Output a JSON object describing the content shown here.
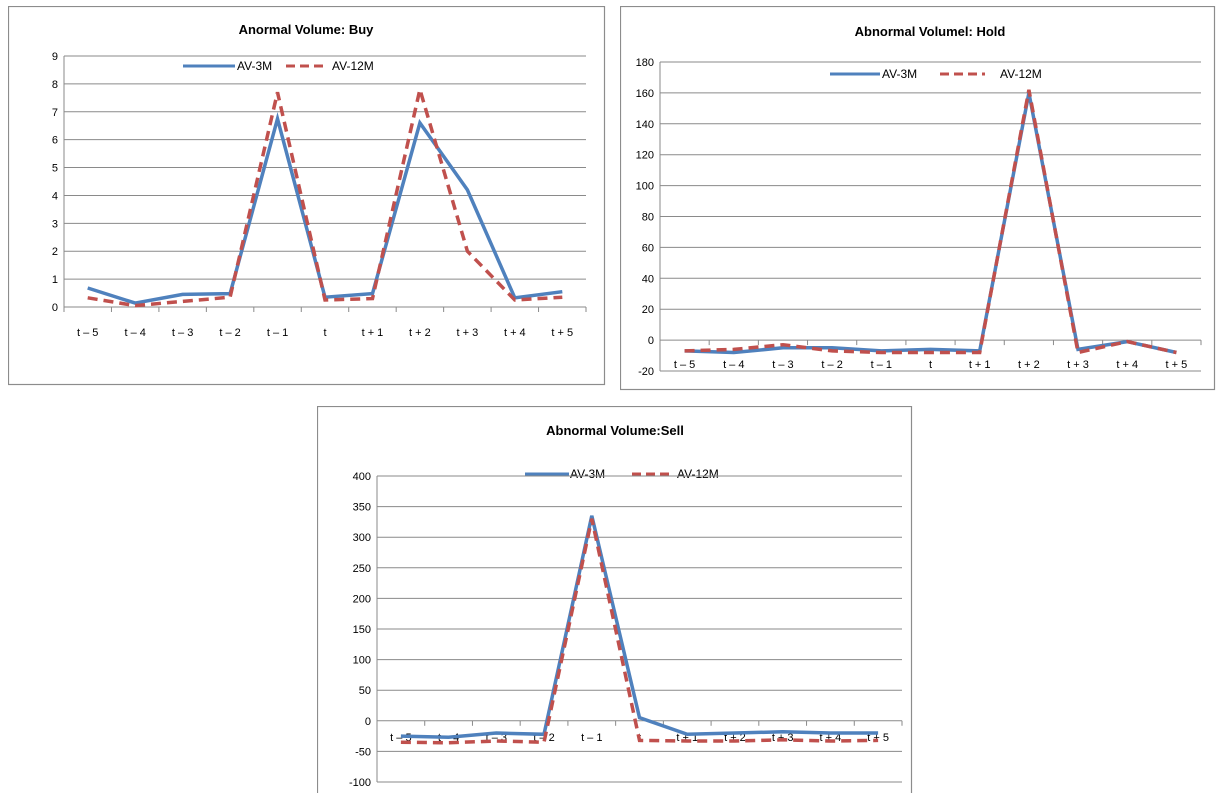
{
  "colors": {
    "av3m": "#4f81bd",
    "av12m": "#c0504d"
  },
  "chart_data": [
    {
      "type": "line",
      "title": "Anormal Volume: Buy",
      "categories": [
        "t – 5",
        "t – 4",
        "t – 3",
        "t – 2",
        "t – 1",
        "t",
        "t + 1",
        "t + 2",
        "t + 3",
        "t + 4",
        "t + 5"
      ],
      "series": [
        {
          "name": "AV-3M",
          "style": "solid",
          "values": [
            0.68,
            0.14,
            0.45,
            0.48,
            6.75,
            0.35,
            0.48,
            6.6,
            4.2,
            0.33,
            0.55
          ]
        },
        {
          "name": "AV-12M",
          "style": "dashed",
          "values": [
            0.33,
            0.05,
            0.2,
            0.35,
            7.7,
            0.25,
            0.3,
            7.8,
            2.0,
            0.25,
            0.35
          ]
        }
      ],
      "ylim": [
        0,
        9
      ],
      "yticks": [
        0,
        1,
        2,
        3,
        4,
        5,
        6,
        7,
        8,
        9
      ],
      "grid": true,
      "legend": "top"
    },
    {
      "type": "line",
      "title": "Abnormal Volumel: Hold",
      "categories": [
        "t – 5",
        "t – 4",
        "t – 3",
        "t – 2",
        "t – 1",
        "t",
        "t + 1",
        "t + 2",
        "t + 3",
        "t + 4",
        "t + 5"
      ],
      "series": [
        {
          "name": "AV-3M",
          "style": "solid",
          "values": [
            -7,
            -8,
            -5,
            -5,
            -7,
            -6,
            -7,
            160,
            -6,
            -1,
            -8
          ]
        },
        {
          "name": "AV-12M",
          "style": "dashed",
          "values": [
            -7,
            -6,
            -3,
            -7,
            -8,
            -8,
            -8,
            162,
            -8,
            -1,
            -8
          ]
        }
      ],
      "ylim": [
        -20,
        180
      ],
      "yticks": [
        -20,
        0,
        20,
        40,
        60,
        80,
        100,
        120,
        140,
        160,
        180
      ],
      "grid": true,
      "legend": "top"
    },
    {
      "type": "line",
      "title": "Abnormal Volume:Sell",
      "categories": [
        "t – 5",
        "t – 4",
        "t – 3",
        "t – 2",
        "t – 1",
        "t",
        "t + 1",
        "t + 2",
        "t + 3",
        "t + 4",
        "t + 5"
      ],
      "series": [
        {
          "name": "AV-3M",
          "style": "solid",
          "values": [
            -25,
            -27,
            -20,
            -22,
            335,
            5,
            -22,
            -20,
            -18,
            -20,
            -20
          ]
        },
        {
          "name": "AV-12M",
          "style": "dashed",
          "values": [
            -35,
            -36,
            -33,
            -35,
            330,
            -32,
            -33,
            -33,
            -31,
            -33,
            -32
          ]
        }
      ],
      "ylim": [
        -100,
        400
      ],
      "yticks": [
        -100,
        -50,
        0,
        50,
        100,
        150,
        200,
        250,
        300,
        350,
        400
      ],
      "grid": true,
      "legend": "top"
    }
  ]
}
